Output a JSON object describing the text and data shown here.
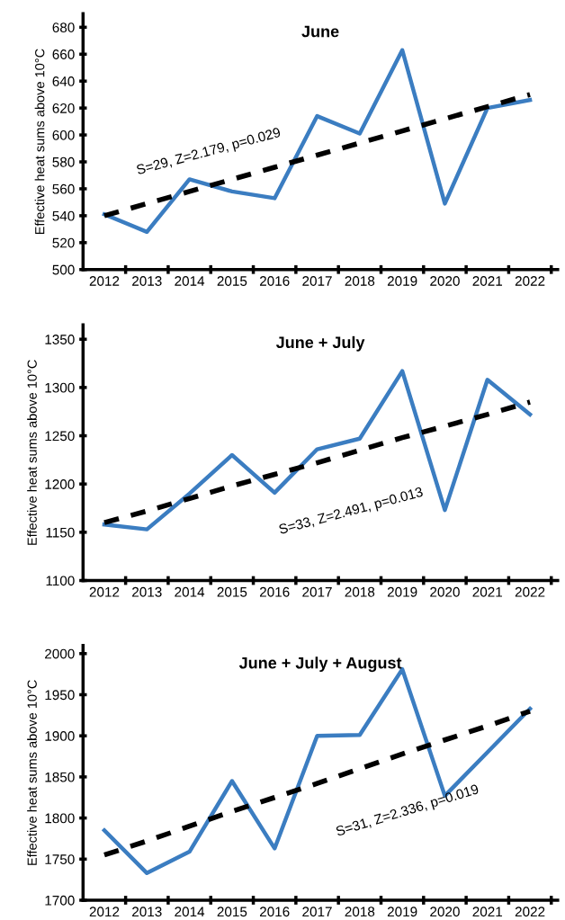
{
  "chart_data": [
    {
      "type": "line",
      "title": "June",
      "ylabel": "Effective heat sums above 10°C",
      "categories": [
        "2012",
        "2013",
        "2014",
        "2015",
        "2016",
        "2017",
        "2018",
        "2019",
        "2020",
        "2021",
        "2022"
      ],
      "ylim": [
        500,
        690
      ],
      "yticks": [
        500,
        520,
        540,
        560,
        580,
        600,
        620,
        640,
        660,
        680
      ],
      "grid": false,
      "legend": false,
      "series": [
        {
          "color": "#3b7dc1",
          "line_style": "solid",
          "values": [
            541,
            528,
            567,
            558,
            553,
            614,
            601,
            663,
            549,
            620,
            626
          ]
        },
        {
          "color": "#000000",
          "line_style": "dashed",
          "values": [
            540,
            549,
            558,
            567,
            576,
            585,
            594,
            603,
            612,
            621,
            630
          ]
        }
      ],
      "annotations": [
        "S=29, Z=2.179, p=0.029"
      ]
    },
    {
      "type": "line",
      "title": "June + July",
      "ylabel": "Effective heat sums above 10°C",
      "categories": [
        "2012",
        "2013",
        "2014",
        "2015",
        "2016",
        "2017",
        "2018",
        "2019",
        "2020",
        "2021",
        "2022"
      ],
      "ylim": [
        1100,
        1365
      ],
      "yticks": [
        1100,
        1150,
        1200,
        1250,
        1300,
        1350
      ],
      "grid": false,
      "legend": false,
      "series": [
        {
          "color": "#3b7dc1",
          "line_style": "solid",
          "values": [
            1158,
            1153,
            1190,
            1230,
            1191,
            1236,
            1247,
            1317,
            1173,
            1308,
            1272
          ]
        },
        {
          "color": "#000000",
          "line_style": "dashed",
          "values": [
            1160,
            1172,
            1185,
            1198,
            1210,
            1222,
            1235,
            1248,
            1260,
            1272,
            1285
          ]
        }
      ],
      "annotations": [
        "S=33, Z=2.491, p=0.013"
      ]
    },
    {
      "type": "line",
      "title": "June + July + August",
      "ylabel": "Effective heat sums above 10°C",
      "categories": [
        "2012",
        "2013",
        "2014",
        "2015",
        "2016",
        "2017",
        "2018",
        "2019",
        "2020",
        "2021",
        "2022"
      ],
      "ylim": [
        1700,
        2010
      ],
      "yticks": [
        1700,
        1750,
        1800,
        1850,
        1900,
        1950,
        2000
      ],
      "grid": false,
      "legend": false,
      "series": [
        {
          "color": "#3b7dc1",
          "line_style": "solid",
          "values": [
            1785,
            1733,
            1759,
            1845,
            1763,
            1900,
            1901,
            1981,
            1827,
            1880,
            1933
          ]
        },
        {
          "color": "#000000",
          "line_style": "dashed",
          "values": [
            1755,
            1772,
            1790,
            1808,
            1825,
            1842,
            1860,
            1878,
            1895,
            1912,
            1930
          ]
        }
      ],
      "annotations": [
        "S=31, Z=2.336, p=0.019"
      ]
    }
  ]
}
